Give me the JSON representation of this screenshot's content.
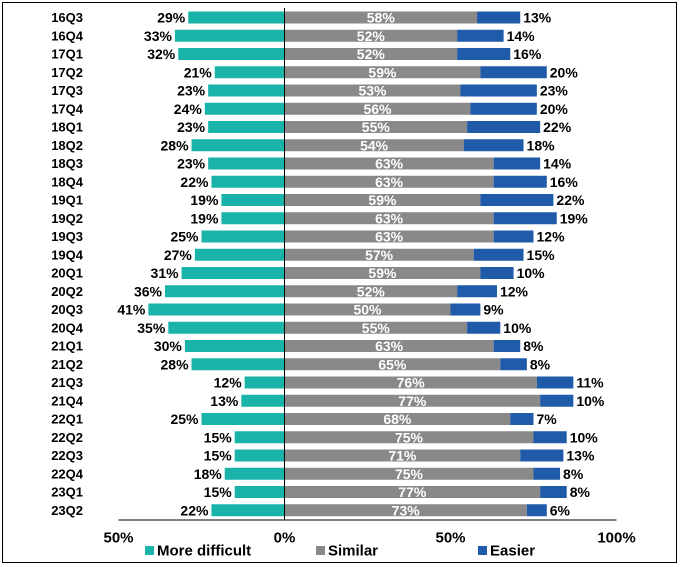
{
  "chart_data": {
    "type": "bar",
    "orientation": "horizontal-diverging",
    "categories": [
      "16Q3",
      "16Q4",
      "17Q1",
      "17Q2",
      "17Q3",
      "17Q4",
      "18Q1",
      "18Q2",
      "18Q3",
      "18Q4",
      "19Q1",
      "19Q2",
      "19Q3",
      "19Q4",
      "20Q1",
      "20Q2",
      "20Q3",
      "20Q4",
      "21Q1",
      "21Q2",
      "21Q3",
      "21Q4",
      "22Q1",
      "22Q2",
      "22Q3",
      "22Q4",
      "23Q1",
      "23Q2"
    ],
    "series": [
      {
        "name": "More difficult",
        "color": "#1AB3AA",
        "direction": "left",
        "values": [
          29,
          33,
          32,
          21,
          23,
          24,
          23,
          28,
          23,
          22,
          19,
          19,
          25,
          27,
          31,
          36,
          41,
          35,
          30,
          28,
          12,
          13,
          25,
          15,
          15,
          18,
          15,
          22
        ]
      },
      {
        "name": "Similar",
        "color": "#898989",
        "direction": "right",
        "values": [
          58,
          52,
          52,
          59,
          53,
          56,
          55,
          54,
          63,
          63,
          59,
          63,
          63,
          57,
          59,
          52,
          50,
          55,
          63,
          65,
          76,
          77,
          68,
          75,
          71,
          75,
          77,
          73
        ]
      },
      {
        "name": "Easier",
        "color": "#1F5BA8",
        "direction": "right",
        "values": [
          13,
          14,
          16,
          20,
          23,
          20,
          22,
          18,
          14,
          16,
          22,
          19,
          12,
          15,
          10,
          12,
          9,
          10,
          8,
          8,
          11,
          10,
          7,
          10,
          13,
          8,
          8,
          6
        ]
      }
    ],
    "unit": "%",
    "xticks": [
      "50%",
      "0%",
      "50%",
      "100%"
    ],
    "xlim": [
      -50,
      100
    ],
    "legend_position": "bottom",
    "grid": false
  }
}
